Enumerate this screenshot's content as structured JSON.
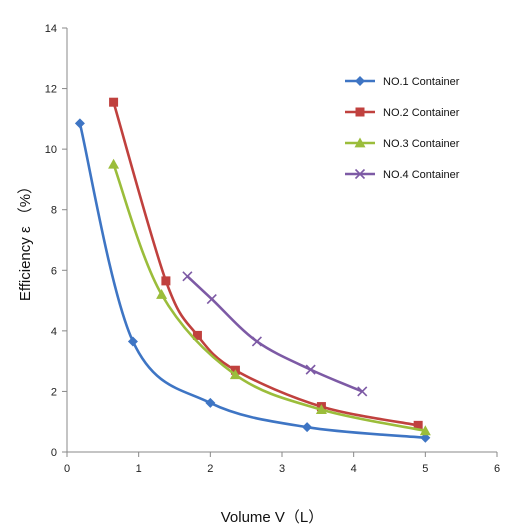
{
  "chart_data": {
    "type": "line",
    "title": "",
    "xlabel": "Volume V（L）",
    "ylabel": "Efficiency ε （%）",
    "xlim": [
      0,
      6
    ],
    "ylim": [
      0,
      14
    ],
    "x_ticks": [
      "0",
      "1",
      "2",
      "3",
      "4",
      "5",
      "6"
    ],
    "y_ticks": [
      "0",
      "2",
      "4",
      "6",
      "8",
      "10",
      "12",
      "14"
    ],
    "grid": false,
    "legend_position": "top-right",
    "series": [
      {
        "name": "NO.1 Container",
        "color": "#3e75c4",
        "marker": "diamond",
        "x": [
          0.18,
          0.92,
          2.0,
          3.35,
          5.0
        ],
        "y": [
          10.85,
          3.65,
          1.62,
          0.82,
          0.47
        ]
      },
      {
        "name": "NO.2 Container",
        "color": "#c0413e",
        "marker": "square",
        "x": [
          0.65,
          1.38,
          1.82,
          2.35,
          3.55,
          4.9
        ],
        "y": [
          11.55,
          5.65,
          3.85,
          2.7,
          1.5,
          0.88
        ]
      },
      {
        "name": "NO.3 Container",
        "color": "#9bbd3b",
        "marker": "triangle",
        "x": [
          0.65,
          1.32,
          2.35,
          3.55,
          5.0
        ],
        "y": [
          9.5,
          5.2,
          2.55,
          1.4,
          0.7
        ]
      },
      {
        "name": "NO.4 Container",
        "color": "#7d5aa5",
        "marker": "x",
        "x": [
          1.68,
          2.02,
          2.65,
          3.4,
          4.12
        ],
        "y": [
          5.8,
          5.05,
          3.65,
          2.72,
          2.0
        ]
      }
    ]
  }
}
